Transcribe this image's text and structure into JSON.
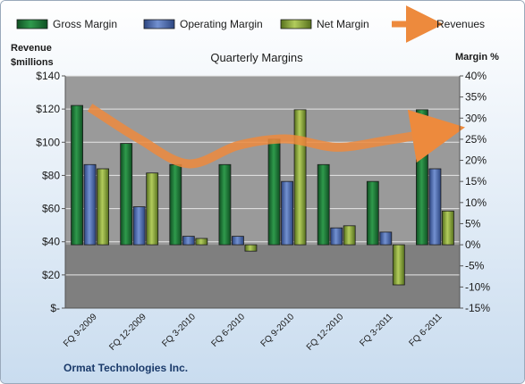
{
  "chart_data": {
    "type": "bar",
    "title": "Quarterly Margins",
    "left_axis_label": [
      "Revenue",
      "$millions"
    ],
    "right_axis_label": "Margin %",
    "footer": "Ormat Technologies Inc.",
    "legend_position": "top",
    "categories": [
      "FQ 9-2009",
      "FQ 12-2009",
      "FQ 3-2010",
      "FQ 6-2010",
      "FQ 9-2010",
      "FQ 12-2010",
      "FQ 3-2011",
      "FQ 6-2011"
    ],
    "left_axis": {
      "min": 0,
      "max": 140,
      "step": 20,
      "ticks": [
        "$-",
        "$20",
        "$40",
        "$60",
        "$80",
        "$100",
        "$120",
        "$140"
      ]
    },
    "right_axis": {
      "min": -15,
      "max": 40,
      "step": 5,
      "ticks": [
        "-15%",
        "-10%",
        "-5%",
        "0%",
        "5%",
        "10%",
        "15%",
        "20%",
        "25%",
        "30%",
        "35%",
        "40%"
      ]
    },
    "series": [
      {
        "name": "Gross Margin",
        "kind": "bar",
        "axis": "right",
        "color": "#1f7a3a",
        "values": [
          33,
          24,
          19,
          19,
          25,
          19,
          15,
          32
        ]
      },
      {
        "name": "Operating Margin",
        "kind": "bar",
        "axis": "right",
        "color": "#4f6fb5",
        "values": [
          19,
          9,
          2,
          2,
          15,
          4,
          3,
          18
        ]
      },
      {
        "name": "Net Margin",
        "kind": "bar",
        "axis": "right",
        "color": "#8faa3a",
        "values": [
          18,
          17,
          1.5,
          -1.5,
          32,
          4.5,
          -9.5,
          8
        ]
      },
      {
        "name": "Revenues",
        "kind": "line",
        "axis": "left",
        "color": "#ed8a3d",
        "values": [
          121,
          102,
          87,
          98,
          102,
          97,
          101,
          106
        ]
      }
    ],
    "colors": {
      "background_top": "#ffffff",
      "background_bottom": "#c9dcef",
      "plot": "#9a9a9a",
      "plot_lower": "#7f7f7f",
      "grid": "#e6e6e6"
    }
  }
}
